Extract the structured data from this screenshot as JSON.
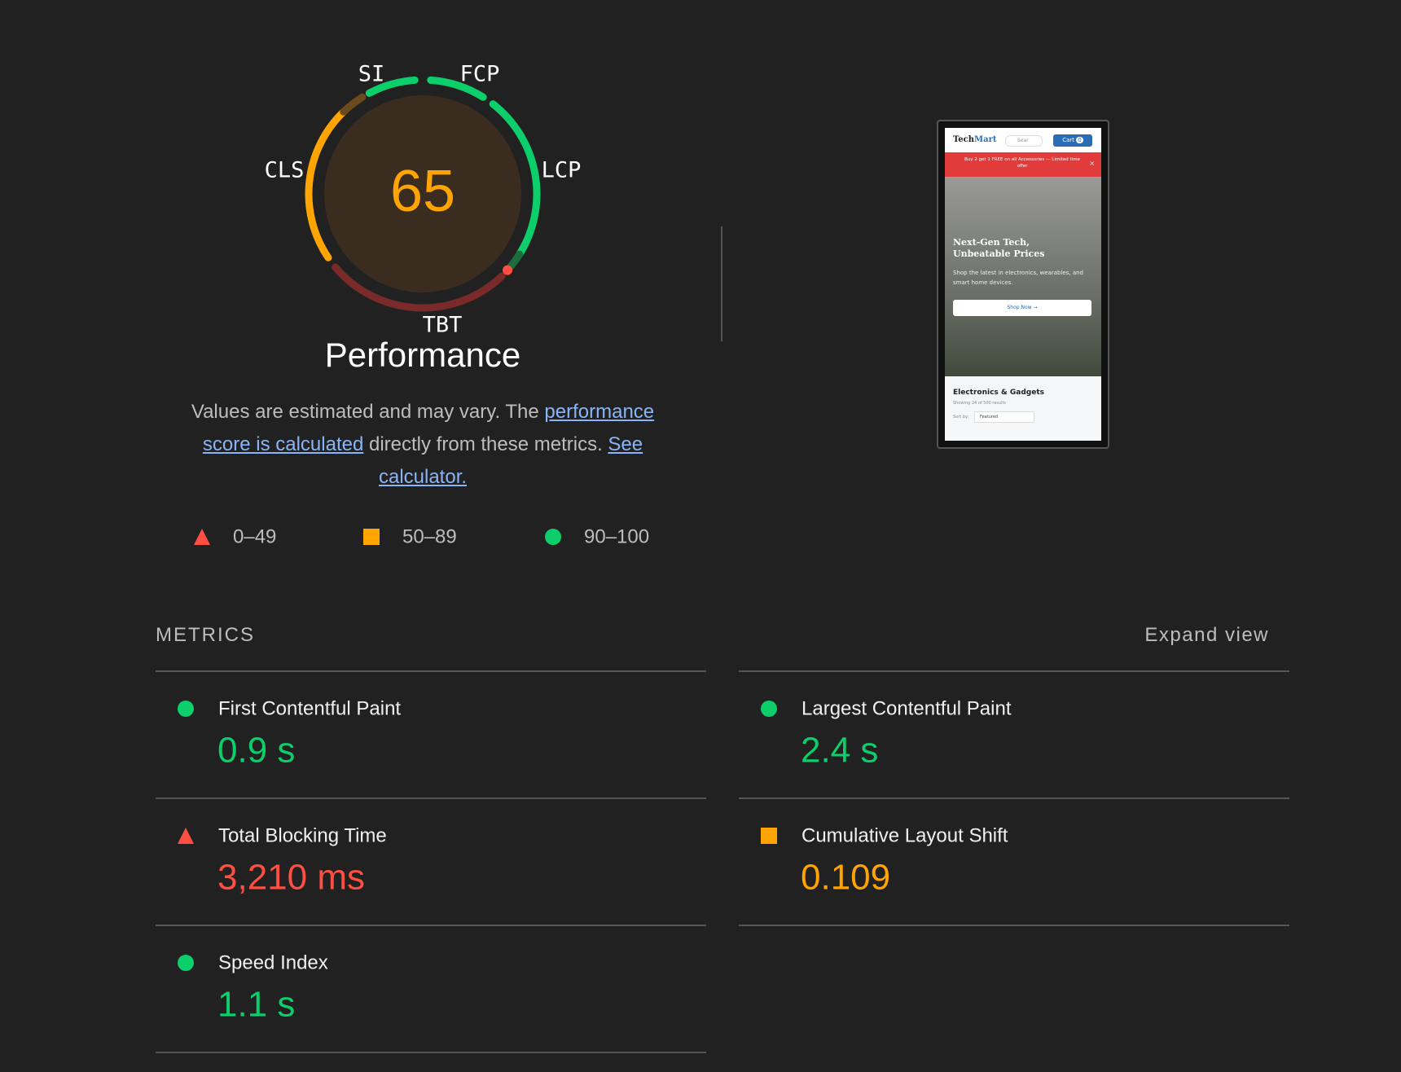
{
  "gauge": {
    "score": 65,
    "score_color": "#ffa400",
    "labels": [
      "SI",
      "FCP",
      "LCP",
      "TBT",
      "CLS"
    ],
    "title": "Performance"
  },
  "description": [
    {
      "text": "Values are estimated and may vary. The ",
      "link": false
    },
    {
      "text": "performance score is calculated",
      "link": true
    },
    {
      "text": " directly from these metrics. ",
      "link": false
    },
    {
      "text": "See calculator.",
      "link": true
    }
  ],
  "legend": [
    {
      "shape": "triangle",
      "color": "#ff4e42",
      "range": "0–49"
    },
    {
      "shape": "square",
      "color": "#ffa400",
      "range": "50–89"
    },
    {
      "shape": "circle",
      "color": "#0cce6b",
      "range": "90–100"
    }
  ],
  "metrics_header": {
    "title": "METRICS",
    "toggle": "Expand view"
  },
  "metrics": [
    {
      "name": "First Contentful Paint",
      "value": "0.9 s",
      "color": "#0cce6b"
    },
    {
      "name": "Largest Contentful Paint",
      "value": "2.4 s",
      "color": "#0cce6b"
    },
    {
      "name": "Total Blocking Time",
      "value": "3,210 ms",
      "color": "#ff4e42"
    },
    {
      "name": "Cumulative Layout Shift",
      "value": "0.109",
      "color": "#ffa400"
    },
    {
      "name": "Speed Index",
      "value": "1.1 s",
      "color": "#0cce6b"
    }
  ],
  "thumbnail": {
    "brand_a": "Tech",
    "brand_b": "Mart",
    "search": "Sear",
    "cart": "Cart",
    "cart_count": "0",
    "promo": "Buy 2 get 1 FREE on all Accessories — Limited time offer",
    "close": "×",
    "hero_title": "Next-Gen Tech, Unbeatable Prices",
    "hero_text": "Shop the latest in electronics, wearables, and smart home devices.",
    "hero_button": "Shop Now →",
    "section_title": "Electronics & Gadgets",
    "section_sub": "Showing 24 of 500 results",
    "sort_label": "Sort by:",
    "sort_value": "Featured"
  }
}
